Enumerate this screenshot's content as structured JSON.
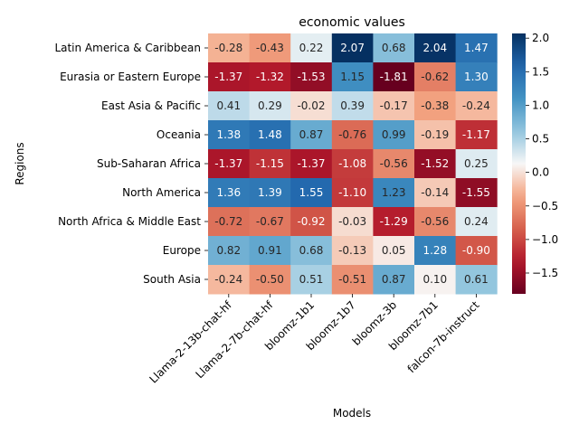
{
  "chart_data": {
    "type": "heatmap",
    "title": "economic values",
    "xlabel": "Models",
    "ylabel": "Regions",
    "rows": [
      "Latin America & Caribbean",
      "Eurasia or Eastern Europe",
      "East Asia & Pacific",
      "Oceania",
      "Sub-Saharan Africa",
      "North America",
      "North Africa & Middle East",
      "Europe",
      "South Asia"
    ],
    "cols": [
      "Llama-2-13b-chat-hf",
      "Llama-2-7b-chat-hf",
      "bloomz-1b1",
      "bloomz-1b7",
      "bloomz-3b",
      "bloomz-7b1",
      "falcon-7b-instruct"
    ],
    "values": [
      [
        -0.28,
        -0.43,
        0.22,
        2.07,
        0.68,
        2.04,
        1.47
      ],
      [
        -1.37,
        -1.32,
        -1.53,
        1.15,
        -1.81,
        -0.62,
        1.3
      ],
      [
        0.41,
        0.29,
        -0.02,
        0.39,
        -0.17,
        -0.38,
        -0.24
      ],
      [
        1.38,
        1.48,
        0.87,
        -0.76,
        0.99,
        -0.19,
        -1.17
      ],
      [
        -1.37,
        -1.15,
        -1.37,
        -1.08,
        -0.56,
        -1.52,
        0.25
      ],
      [
        1.36,
        1.39,
        1.55,
        -1.1,
        1.23,
        -0.14,
        -1.55
      ],
      [
        -0.72,
        -0.67,
        -0.92,
        -0.03,
        -1.29,
        -0.56,
        0.24
      ],
      [
        0.82,
        0.91,
        0.68,
        -0.13,
        0.05,
        1.28,
        -0.9
      ],
      [
        -0.24,
        -0.5,
        0.51,
        -0.51,
        0.87,
        0.1,
        0.61
      ]
    ],
    "colormap": "RdBu",
    "vmin": -1.81,
    "vmax": 2.07,
    "colorbar_ticks": [
      "2.0",
      "1.5",
      "1.0",
      "0.5",
      "0.0",
      "−0.5",
      "−1.0",
      "−1.5"
    ],
    "colorbar_tick_values": [
      2.0,
      1.5,
      1.0,
      0.5,
      0.0,
      -0.5,
      -1.0,
      -1.5
    ]
  }
}
